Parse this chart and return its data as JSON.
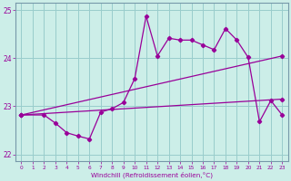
{
  "xlabel": "Windchill (Refroidissement éolien,°C)",
  "bg_color": "#cceee8",
  "line_color": "#990099",
  "grid_color": "#99cccc",
  "spine_color": "#7799aa",
  "xlim": [
    -0.5,
    23.5
  ],
  "ylim": [
    21.85,
    25.15
  ],
  "yticks": [
    22,
    23,
    24,
    25
  ],
  "xticks": [
    0,
    1,
    2,
    3,
    4,
    5,
    6,
    7,
    8,
    9,
    10,
    11,
    12,
    13,
    14,
    15,
    16,
    17,
    18,
    19,
    20,
    21,
    22,
    23
  ],
  "trend1_x": [
    0,
    23
  ],
  "trend1_y": [
    22.82,
    23.15
  ],
  "trend2_x": [
    0,
    23
  ],
  "trend2_y": [
    22.82,
    24.05
  ],
  "jagged_x": [
    0,
    2,
    3,
    4,
    5,
    6,
    7,
    8,
    9,
    10,
    11,
    12,
    13,
    14,
    15,
    16,
    17,
    18,
    19,
    20,
    21,
    22,
    23
  ],
  "jagged_y": [
    22.82,
    22.82,
    22.65,
    22.45,
    22.38,
    22.32,
    22.88,
    22.95,
    23.08,
    23.58,
    24.88,
    24.05,
    24.42,
    24.38,
    24.38,
    24.28,
    24.18,
    24.62,
    24.38,
    24.02,
    22.68,
    23.12,
    22.82
  ]
}
